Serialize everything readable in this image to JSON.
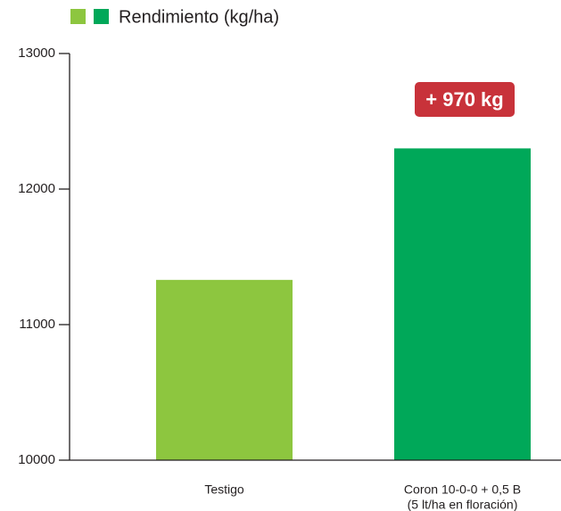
{
  "chart_data": {
    "type": "bar",
    "categories": [
      [
        "Testigo"
      ],
      [
        "Coron 10-0-0 + 0,5 B",
        "(5 lt/ha en floración)"
      ]
    ],
    "series": [
      {
        "name": "Rendimiento (kg/ha)",
        "colors": [
          "#8dc63f",
          "#00a859"
        ],
        "values": [
          11330,
          12300
        ]
      }
    ],
    "annotation": "+ 970 kg",
    "annotation_color": "#c8323a",
    "ylim": [
      10000,
      13000
    ],
    "yticks": [
      10000,
      11000,
      12000,
      13000
    ]
  }
}
